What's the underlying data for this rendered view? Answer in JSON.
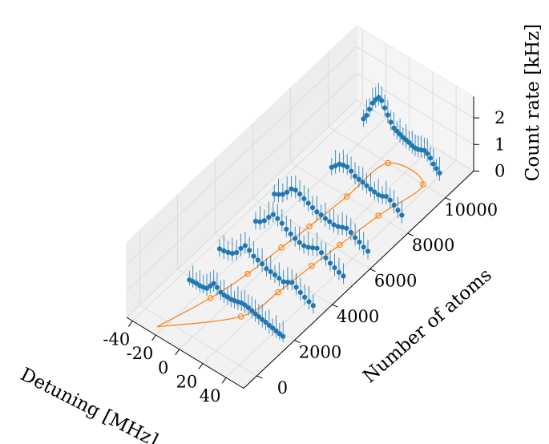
{
  "chart_data": {
    "type": "scatter",
    "projection": "3d",
    "xlabel": "Detuning [MHz]",
    "ylabel": "Number of atoms",
    "zlabel": "Count rate [kHz]",
    "xticks": [
      "-40",
      "-20",
      "0",
      "20",
      "40"
    ],
    "yticks": [
      "0",
      "2000",
      "4000",
      "6000",
      "8000",
      "10000"
    ],
    "zticks": [
      "0",
      "1",
      "2"
    ],
    "xlim": [
      -45,
      55
    ],
    "ylim": [
      -700,
      11500
    ],
    "zlim": [
      0,
      2.8
    ],
    "grid": true,
    "colors": {
      "measurements": "#1f77b4",
      "fit": "#ff7f0e"
    },
    "scans": [
      {
        "atoms": 1700,
        "detuning_range": [
          -30,
          50
        ],
        "count_rate": [
          0.2,
          0.22,
          0.23,
          0.22,
          0.24,
          0.28,
          0.45,
          0.62,
          0.55,
          0.45,
          0.42,
          0.43,
          0.42,
          0.45,
          0.48,
          0.52,
          0.52,
          0.5,
          0.47,
          0.43,
          0.4,
          0.37,
          0.35,
          0.31,
          0.29,
          0.26,
          0.23,
          0.21
        ]
      },
      {
        "atoms": 3300,
        "detuning_range": [
          -30,
          50
        ],
        "count_rate": [
          0.3,
          0.32,
          0.36,
          0.42,
          0.55,
          0.8,
          1.0,
          0.92,
          0.8,
          0.75,
          0.7,
          0.62,
          0.6,
          0.58,
          0.55,
          0.52,
          0.6,
          0.68,
          0.6,
          0.5,
          0.42,
          0.35,
          0.3
        ]
      },
      {
        "atoms": 4900,
        "detuning_range": [
          -25,
          50
        ],
        "count_rate": [
          0.4,
          0.48,
          0.62,
          0.85,
          1.05,
          1.0,
          0.92,
          0.8,
          0.72,
          0.65,
          0.6,
          0.58,
          0.62,
          0.7,
          0.78,
          0.72,
          0.62,
          0.52,
          0.45,
          0.38,
          0.34
        ]
      },
      {
        "atoms": 6200,
        "detuning_range": [
          -30,
          50
        ],
        "count_rate": [
          0.42,
          0.5,
          0.6,
          0.78,
          1.0,
          1.05,
          1.0,
          0.92,
          0.85,
          0.78,
          0.72,
          0.7,
          0.66,
          0.64,
          0.62,
          0.65,
          0.72,
          0.78,
          0.72,
          0.62,
          0.55,
          0.46,
          0.4
        ]
      },
      {
        "atoms": 8000,
        "detuning_range": [
          -10,
          50
        ],
        "count_rate": [
          0.75,
          0.9,
          1.05,
          1.1,
          1.12,
          1.05,
          0.95,
          0.92,
          0.9,
          0.86,
          0.82,
          0.8,
          0.78,
          0.82,
          0.9,
          0.85,
          0.75,
          0.65,
          0.55
        ]
      },
      {
        "atoms": 10000,
        "detuning_range": [
          -15,
          50
        ],
        "count_rate": [
          1.1,
          1.3,
          1.6,
          1.9,
          2.1,
          2.25,
          2.2,
          2.0,
          1.8,
          1.6,
          1.45,
          1.4,
          1.35,
          1.3,
          1.28,
          1.25,
          1.2,
          1.18,
          1.2,
          1.25,
          1.3,
          1.25,
          1.15,
          1.0,
          0.9,
          0.8
        ]
      }
    ],
    "fit_points": [
      {
        "atoms": 1700,
        "detuning": -12,
        "count_rate": 0
      },
      {
        "atoms": 1700,
        "detuning": 14,
        "count_rate": 0
      },
      {
        "atoms": 3300,
        "detuning": -6,
        "count_rate": 0
      },
      {
        "atoms": 3300,
        "detuning": 20,
        "count_rate": 0
      },
      {
        "atoms": 4900,
        "detuning": -3,
        "count_rate": 0
      },
      {
        "atoms": 4900,
        "detuning": 23,
        "count_rate": 0
      },
      {
        "atoms": 6200,
        "detuning": 0,
        "count_rate": 0
      },
      {
        "atoms": 6200,
        "detuning": 26,
        "count_rate": 0
      },
      {
        "atoms": 8000,
        "detuning": 3,
        "count_rate": 0
      },
      {
        "atoms": 8000,
        "detuning": 30,
        "count_rate": 0
      },
      {
        "atoms": 10000,
        "detuning": 6,
        "count_rate": 0
      },
      {
        "atoms": 10000,
        "detuning": 36,
        "count_rate": 0
      }
    ]
  }
}
